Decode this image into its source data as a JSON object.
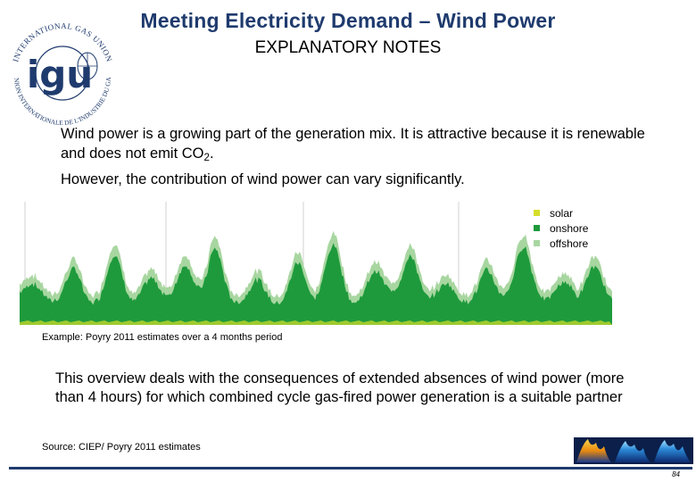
{
  "header": {
    "title": "Meeting Electricity Demand – Wind Power",
    "subtitle": "EXPLANATORY NOTES"
  },
  "logo": {
    "ring_text_top": "INTERNATIONAL GAS UNION",
    "ring_text_bottom": "UNION INTERNATIONALE DE L'INDUSTRIE DU GAZ",
    "center_text": "igu",
    "icon": "igu-logo-icon"
  },
  "body": {
    "para1_text": "Wind power is a growing part of the generation mix. It is attractive because it is renewable and does not emit CO",
    "para1_sub": "2",
    "para1_end": ".",
    "para2": "However, the contribution of wind power can vary significantly.",
    "caption": "Example: Poyry 2011 estimates over a 4 months period",
    "para3": "This overview deals with the consequences of extended absences of wind power (more than 4 hours) for which combined cycle gas-fired power generation is a suitable partner",
    "source": "Source: CIEP/ Poyry 2011 estimates"
  },
  "chart_data": {
    "type": "area",
    "title": "",
    "xlabel": "",
    "ylabel": "",
    "legend_position": "top-right",
    "grid": false,
    "series": [
      {
        "name": "solar",
        "color": "#d6de2a"
      },
      {
        "name": "onshore",
        "color": "#1e9a3c"
      },
      {
        "name": "offshore",
        "color": "#a8d6a0"
      }
    ]
  },
  "footer": {
    "page_number": "84",
    "decor_icon": "flames-icon"
  }
}
